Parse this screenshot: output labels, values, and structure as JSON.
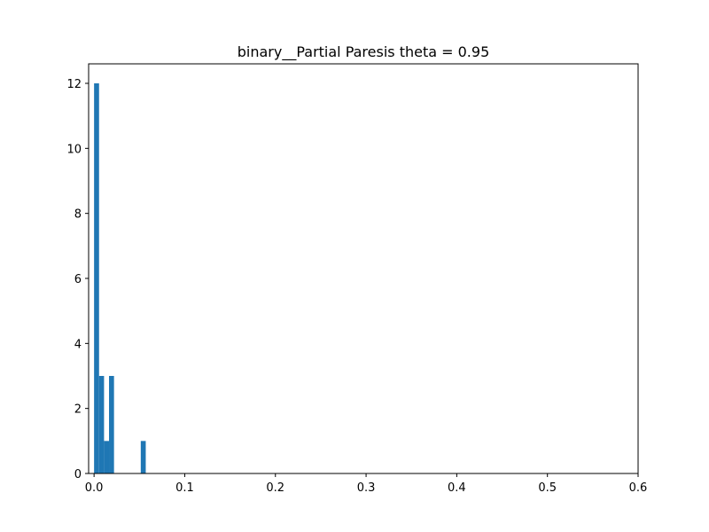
{
  "chart_data": {
    "type": "bar",
    "title": "binary__Partial Paresis theta = 0.95",
    "xlabel": "",
    "ylabel": "",
    "xlim": [
      -0.006,
      0.6
    ],
    "ylim": [
      0,
      12.6
    ],
    "x_ticks": [
      0.0,
      0.1,
      0.2,
      0.3,
      0.4,
      0.5,
      0.6
    ],
    "x_tick_labels": [
      "0.0",
      "0.1",
      "0.2",
      "0.3",
      "0.4",
      "0.5",
      "0.6"
    ],
    "y_ticks": [
      0,
      2,
      4,
      6,
      8,
      10,
      12
    ],
    "y_tick_labels": [
      "0",
      "2",
      "4",
      "6",
      "8",
      "10",
      "12"
    ],
    "grid": false,
    "bar_color": "#1f77b4",
    "bins": [
      {
        "x0": 0.0,
        "x1": 0.0055,
        "count": 12
      },
      {
        "x0": 0.0055,
        "x1": 0.011,
        "count": 3
      },
      {
        "x0": 0.011,
        "x1": 0.0165,
        "count": 1
      },
      {
        "x0": 0.0165,
        "x1": 0.022,
        "count": 3
      },
      {
        "x0": 0.0515,
        "x1": 0.057,
        "count": 1
      }
    ]
  }
}
